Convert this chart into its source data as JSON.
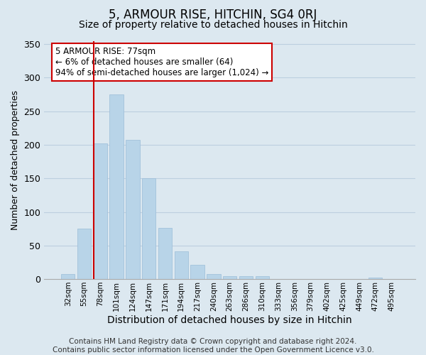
{
  "title": "5, ARMOUR RISE, HITCHIN, SG4 0RJ",
  "subtitle": "Size of property relative to detached houses in Hitchin",
  "xlabel": "Distribution of detached houses by size in Hitchin",
  "ylabel": "Number of detached properties",
  "bar_labels": [
    "32sqm",
    "55sqm",
    "78sqm",
    "101sqm",
    "124sqm",
    "147sqm",
    "171sqm",
    "194sqm",
    "217sqm",
    "240sqm",
    "263sqm",
    "286sqm",
    "310sqm",
    "333sqm",
    "356sqm",
    "379sqm",
    "402sqm",
    "425sqm",
    "449sqm",
    "472sqm",
    "495sqm"
  ],
  "bar_values": [
    7,
    75,
    202,
    275,
    207,
    150,
    76,
    41,
    21,
    7,
    4,
    4,
    4,
    0,
    0,
    0,
    0,
    0,
    0,
    2,
    0
  ],
  "bar_color": "#b8d4e8",
  "bar_edge_color": "#9bbcd8",
  "vline_x_index": 2,
  "vline_color": "#cc0000",
  "annotation_text": "5 ARMOUR RISE: 77sqm\n← 6% of detached houses are smaller (64)\n94% of semi-detached houses are larger (1,024) →",
  "annotation_box_edgecolor": "#cc0000",
  "annotation_box_facecolor": "#ffffff",
  "ylim": [
    0,
    355
  ],
  "yticks": [
    0,
    50,
    100,
    150,
    200,
    250,
    300,
    350
  ],
  "footer_text": "Contains HM Land Registry data © Crown copyright and database right 2024.\nContains public sector information licensed under the Open Government Licence v3.0.",
  "bg_color": "#dce8f0",
  "plot_bg_color": "#dce8f0",
  "title_fontsize": 12,
  "subtitle_fontsize": 10,
  "xlabel_fontsize": 10,
  "ylabel_fontsize": 9,
  "footer_fontsize": 7.5,
  "grid_color": "#bccfdf"
}
